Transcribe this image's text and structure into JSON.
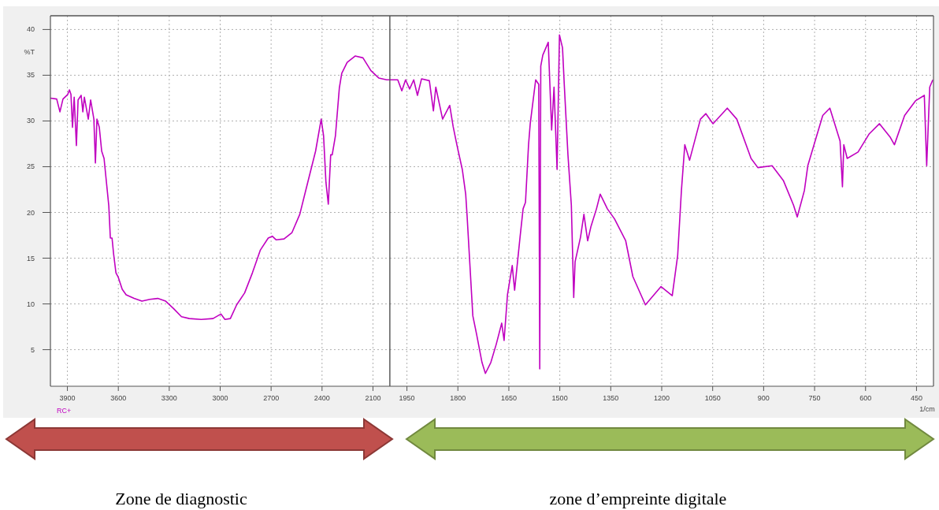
{
  "chart_data": [
    {
      "type": "line",
      "ylabel": "%T",
      "xlim": [
        4000,
        2000
      ],
      "xticks": [
        3900,
        3600,
        3300,
        3000,
        2700,
        2400,
        2100
      ],
      "ylim": [
        1,
        41.5
      ],
      "yticks": [
        5,
        10,
        15,
        20,
        25,
        30,
        35,
        40
      ],
      "grid": true,
      "annotations": [
        "RC+",
        "Zone de diagnostic"
      ],
      "series": [
        {
          "color": "#c000c0",
          "x": [
            4000,
            3963,
            3944,
            3926,
            3898,
            3888,
            3879,
            3870,
            3860,
            3847,
            3837,
            3819,
            3809,
            3800,
            3777,
            3763,
            3744,
            3735,
            3726,
            3712,
            3698,
            3684,
            3670,
            3656,
            3647,
            3637,
            3628,
            3614,
            3600,
            3577,
            3554,
            3507,
            3461,
            3414,
            3368,
            3321,
            3275,
            3228,
            3182,
            3112,
            3042,
            2996,
            2972,
            2940,
            2903,
            2856,
            2810,
            2763,
            2717,
            2693,
            2670,
            2624,
            2577,
            2531,
            2484,
            2438,
            2405,
            2391,
            2377,
            2363,
            2349,
            2340,
            2321,
            2298,
            2284,
            2252,
            2205,
            2159,
            2112,
            2066,
            2019,
            2000
          ],
          "values": [
            32.5,
            32.4,
            31.0,
            32.4,
            32.9,
            33.4,
            32.9,
            29.3,
            32.6,
            27.3,
            32.3,
            32.8,
            31.0,
            32.6,
            30.2,
            32.3,
            30.2,
            25.4,
            30.2,
            29.3,
            26.7,
            25.9,
            23.3,
            20.7,
            17.2,
            17.2,
            15.5,
            13.4,
            12.9,
            11.6,
            11.0,
            10.6,
            10.3,
            10.5,
            10.6,
            10.3,
            9.5,
            8.6,
            8.4,
            8.3,
            8.4,
            8.9,
            8.3,
            8.4,
            9.9,
            11.2,
            13.4,
            15.9,
            17.2,
            17.4,
            17.0,
            17.1,
            17.8,
            19.8,
            23.3,
            26.7,
            30.2,
            28.4,
            23.3,
            20.9,
            26.3,
            26.3,
            28.4,
            33.6,
            35.2,
            36.4,
            37.1,
            36.9,
            35.5,
            34.7,
            34.5,
            34.5
          ]
        }
      ]
    },
    {
      "type": "line",
      "xlabel": "1/cm",
      "xlim": [
        2000,
        400
      ],
      "xticks": [
        1950,
        1800,
        1650,
        1500,
        1350,
        1200,
        1050,
        900,
        750,
        600,
        450
      ],
      "ylim": [
        1,
        41.5
      ],
      "yticks": [
        5,
        10,
        15,
        20,
        25,
        30,
        35,
        40
      ],
      "grid": true,
      "tick_labels": "x",
      "annotations": [
        "zone d’empreinte digitale"
      ],
      "series": [
        {
          "color": "#c000c0",
          "x": [
            2000,
            1977,
            1965,
            1954,
            1942,
            1930,
            1919,
            1907,
            1884,
            1872,
            1865,
            1845,
            1824,
            1814,
            1803,
            1787,
            1777,
            1773,
            1756,
            1745,
            1729,
            1719,
            1703,
            1687,
            1671,
            1664,
            1654,
            1640,
            1633,
            1617,
            1608,
            1601,
            1592,
            1587,
            1571,
            1562,
            1559,
            1556,
            1550,
            1534,
            1524,
            1517,
            1508,
            1501,
            1492,
            1487,
            1476,
            1466,
            1459,
            1455,
            1439,
            1429,
            1418,
            1408,
            1392,
            1381,
            1360,
            1339,
            1306,
            1285,
            1248,
            1202,
            1169,
            1153,
            1142,
            1132,
            1118,
            1086,
            1070,
            1049,
            1007,
            979,
            937,
            917,
            875,
            842,
            812,
            801,
            780,
            770,
            726,
            705,
            675,
            668,
            664,
            654,
            622,
            589,
            559,
            527,
            515,
            485,
            453,
            427,
            420,
            411,
            402
          ],
          "values": [
            34.5,
            34.5,
            33.3,
            34.5,
            33.5,
            34.5,
            32.8,
            34.6,
            34.4,
            31.1,
            33.7,
            30.2,
            31.7,
            29.4,
            27.4,
            24.7,
            22.0,
            19.7,
            8.7,
            6.7,
            3.6,
            2.4,
            3.6,
            5.6,
            7.9,
            6.0,
            11.0,
            14.2,
            11.5,
            17.3,
            20.4,
            21.1,
            27.4,
            29.7,
            34.5,
            34.0,
            2.9,
            36.0,
            37.2,
            38.6,
            29.0,
            33.7,
            24.7,
            39.4,
            38.0,
            34.1,
            26.3,
            20.8,
            10.7,
            14.6,
            17.3,
            19.8,
            16.9,
            18.5,
            20.4,
            22.0,
            20.4,
            19.3,
            16.9,
            13.0,
            9.9,
            11.9,
            10.9,
            15.3,
            22.4,
            27.4,
            25.7,
            30.2,
            30.8,
            29.7,
            31.4,
            30.2,
            25.9,
            24.9,
            25.1,
            23.5,
            20.8,
            19.5,
            22.4,
            25.1,
            30.6,
            31.4,
            27.8,
            22.8,
            27.4,
            25.9,
            26.6,
            28.6,
            29.7,
            28.2,
            27.4,
            30.6,
            32.2,
            32.8,
            25.1,
            33.7,
            34.5
          ]
        }
      ]
    }
  ]
}
